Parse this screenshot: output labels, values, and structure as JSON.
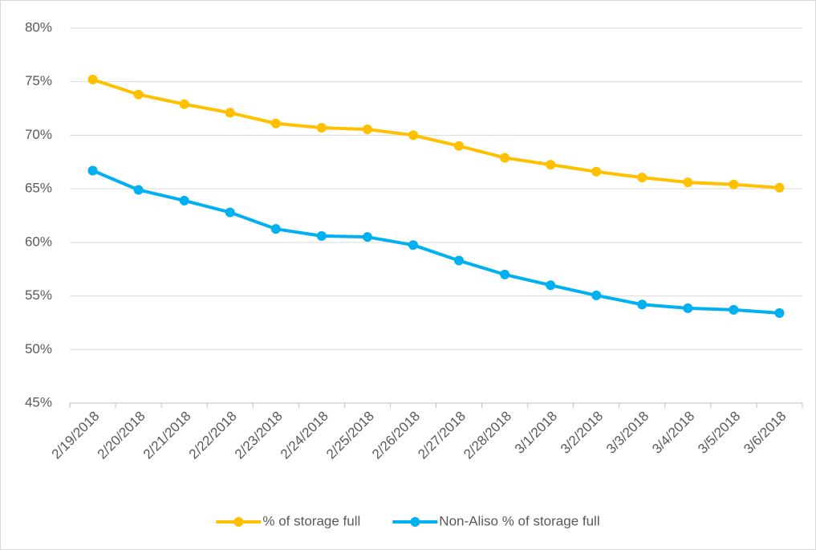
{
  "chart_data": {
    "type": "line",
    "categories": [
      "2/19/2018",
      "2/20/2018",
      "2/21/2018",
      "2/22/2018",
      "2/23/2018",
      "2/24/2018",
      "2/25/2018",
      "2/26/2018",
      "2/27/2018",
      "2/28/2018",
      "3/1/2018",
      "3/2/2018",
      "3/3/2018",
      "3/4/2018",
      "3/5/2018",
      "3/6/2018"
    ],
    "series": [
      {
        "name": "% of storage full",
        "color": "#FFC000",
        "values": [
          75.2,
          73.8,
          72.9,
          72.1,
          71.1,
          70.7,
          70.55,
          70.0,
          69.0,
          67.9,
          67.25,
          66.6,
          66.05,
          65.6,
          65.4,
          65.1
        ]
      },
      {
        "name": "Non-Aliso % of storage full",
        "color": "#00B0F0",
        "values": [
          66.7,
          64.9,
          63.9,
          62.8,
          61.25,
          60.6,
          60.5,
          59.75,
          58.3,
          57.0,
          56.0,
          55.05,
          54.2,
          53.85,
          53.7,
          53.4
        ]
      }
    ],
    "ylim": [
      45,
      80
    ],
    "yticks": [
      {
        "value": 45,
        "label": "45%"
      },
      {
        "value": 50,
        "label": "50%"
      },
      {
        "value": 55,
        "label": "55%"
      },
      {
        "value": 60,
        "label": "60%"
      },
      {
        "value": 65,
        "label": "65%"
      },
      {
        "value": 70,
        "label": "70%"
      },
      {
        "value": 75,
        "label": "75%"
      },
      {
        "value": 80,
        "label": "80%"
      }
    ],
    "grid": true,
    "legend": "bottom"
  }
}
